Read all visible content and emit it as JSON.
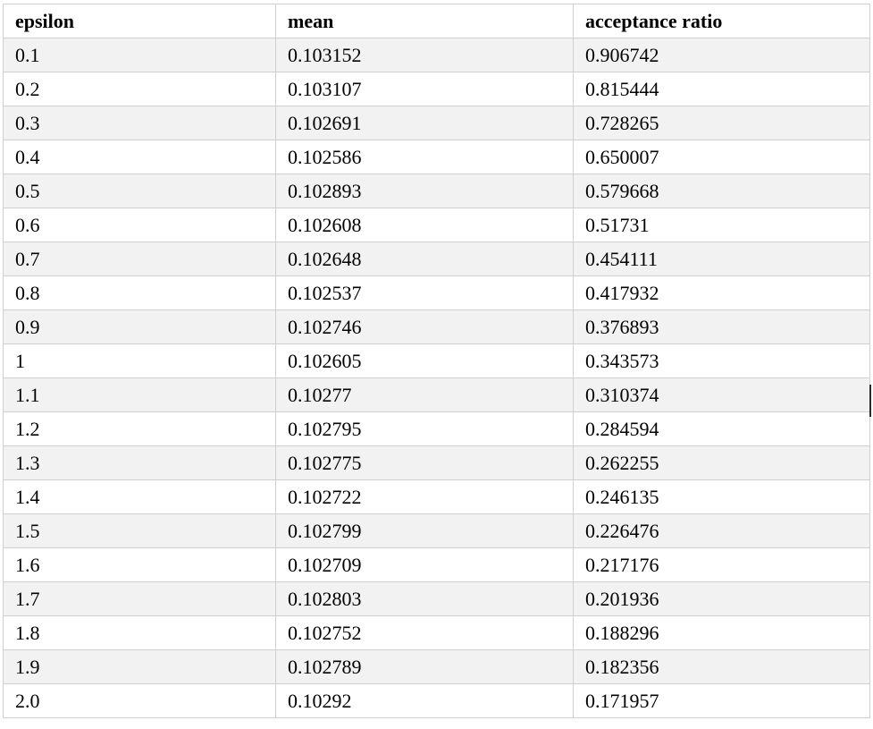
{
  "table": {
    "headers": [
      "epsilon",
      "mean",
      "acceptance ratio"
    ],
    "rows": [
      [
        "0.1",
        "0.103152",
        "0.906742"
      ],
      [
        "0.2",
        "0.103107",
        "0.815444"
      ],
      [
        "0.3",
        "0.102691",
        "0.728265"
      ],
      [
        "0.4",
        "0.102586",
        "0.650007"
      ],
      [
        "0.5",
        "0.102893",
        "0.579668"
      ],
      [
        "0.6",
        "0.102608",
        "0.51731"
      ],
      [
        "0.7",
        "0.102648",
        "0.454111"
      ],
      [
        "0.8",
        "0.102537",
        "0.417932"
      ],
      [
        "0.9",
        "0.102746",
        "0.376893"
      ],
      [
        "1",
        "0.102605",
        "0.343573"
      ],
      [
        "1.1",
        "0.10277",
        "0.310374"
      ],
      [
        "1.2",
        "0.102795",
        "0.284594"
      ],
      [
        "1.3",
        "0.102775",
        "0.262255"
      ],
      [
        "1.4",
        "0.102722",
        "0.246135"
      ],
      [
        "1.5",
        "0.102799",
        "0.226476"
      ],
      [
        "1.6",
        "0.102709",
        "0.217176"
      ],
      [
        "1.7",
        "0.102803",
        "0.201936"
      ],
      [
        "1.8",
        "0.102752",
        "0.188296"
      ],
      [
        "1.9",
        "0.102789",
        "0.182356"
      ],
      [
        "2.0",
        "0.10292",
        "0.171957"
      ]
    ]
  },
  "colors": {
    "stripe": "#f2f2f2",
    "border": "#cfcfcf",
    "text": "#000000"
  }
}
